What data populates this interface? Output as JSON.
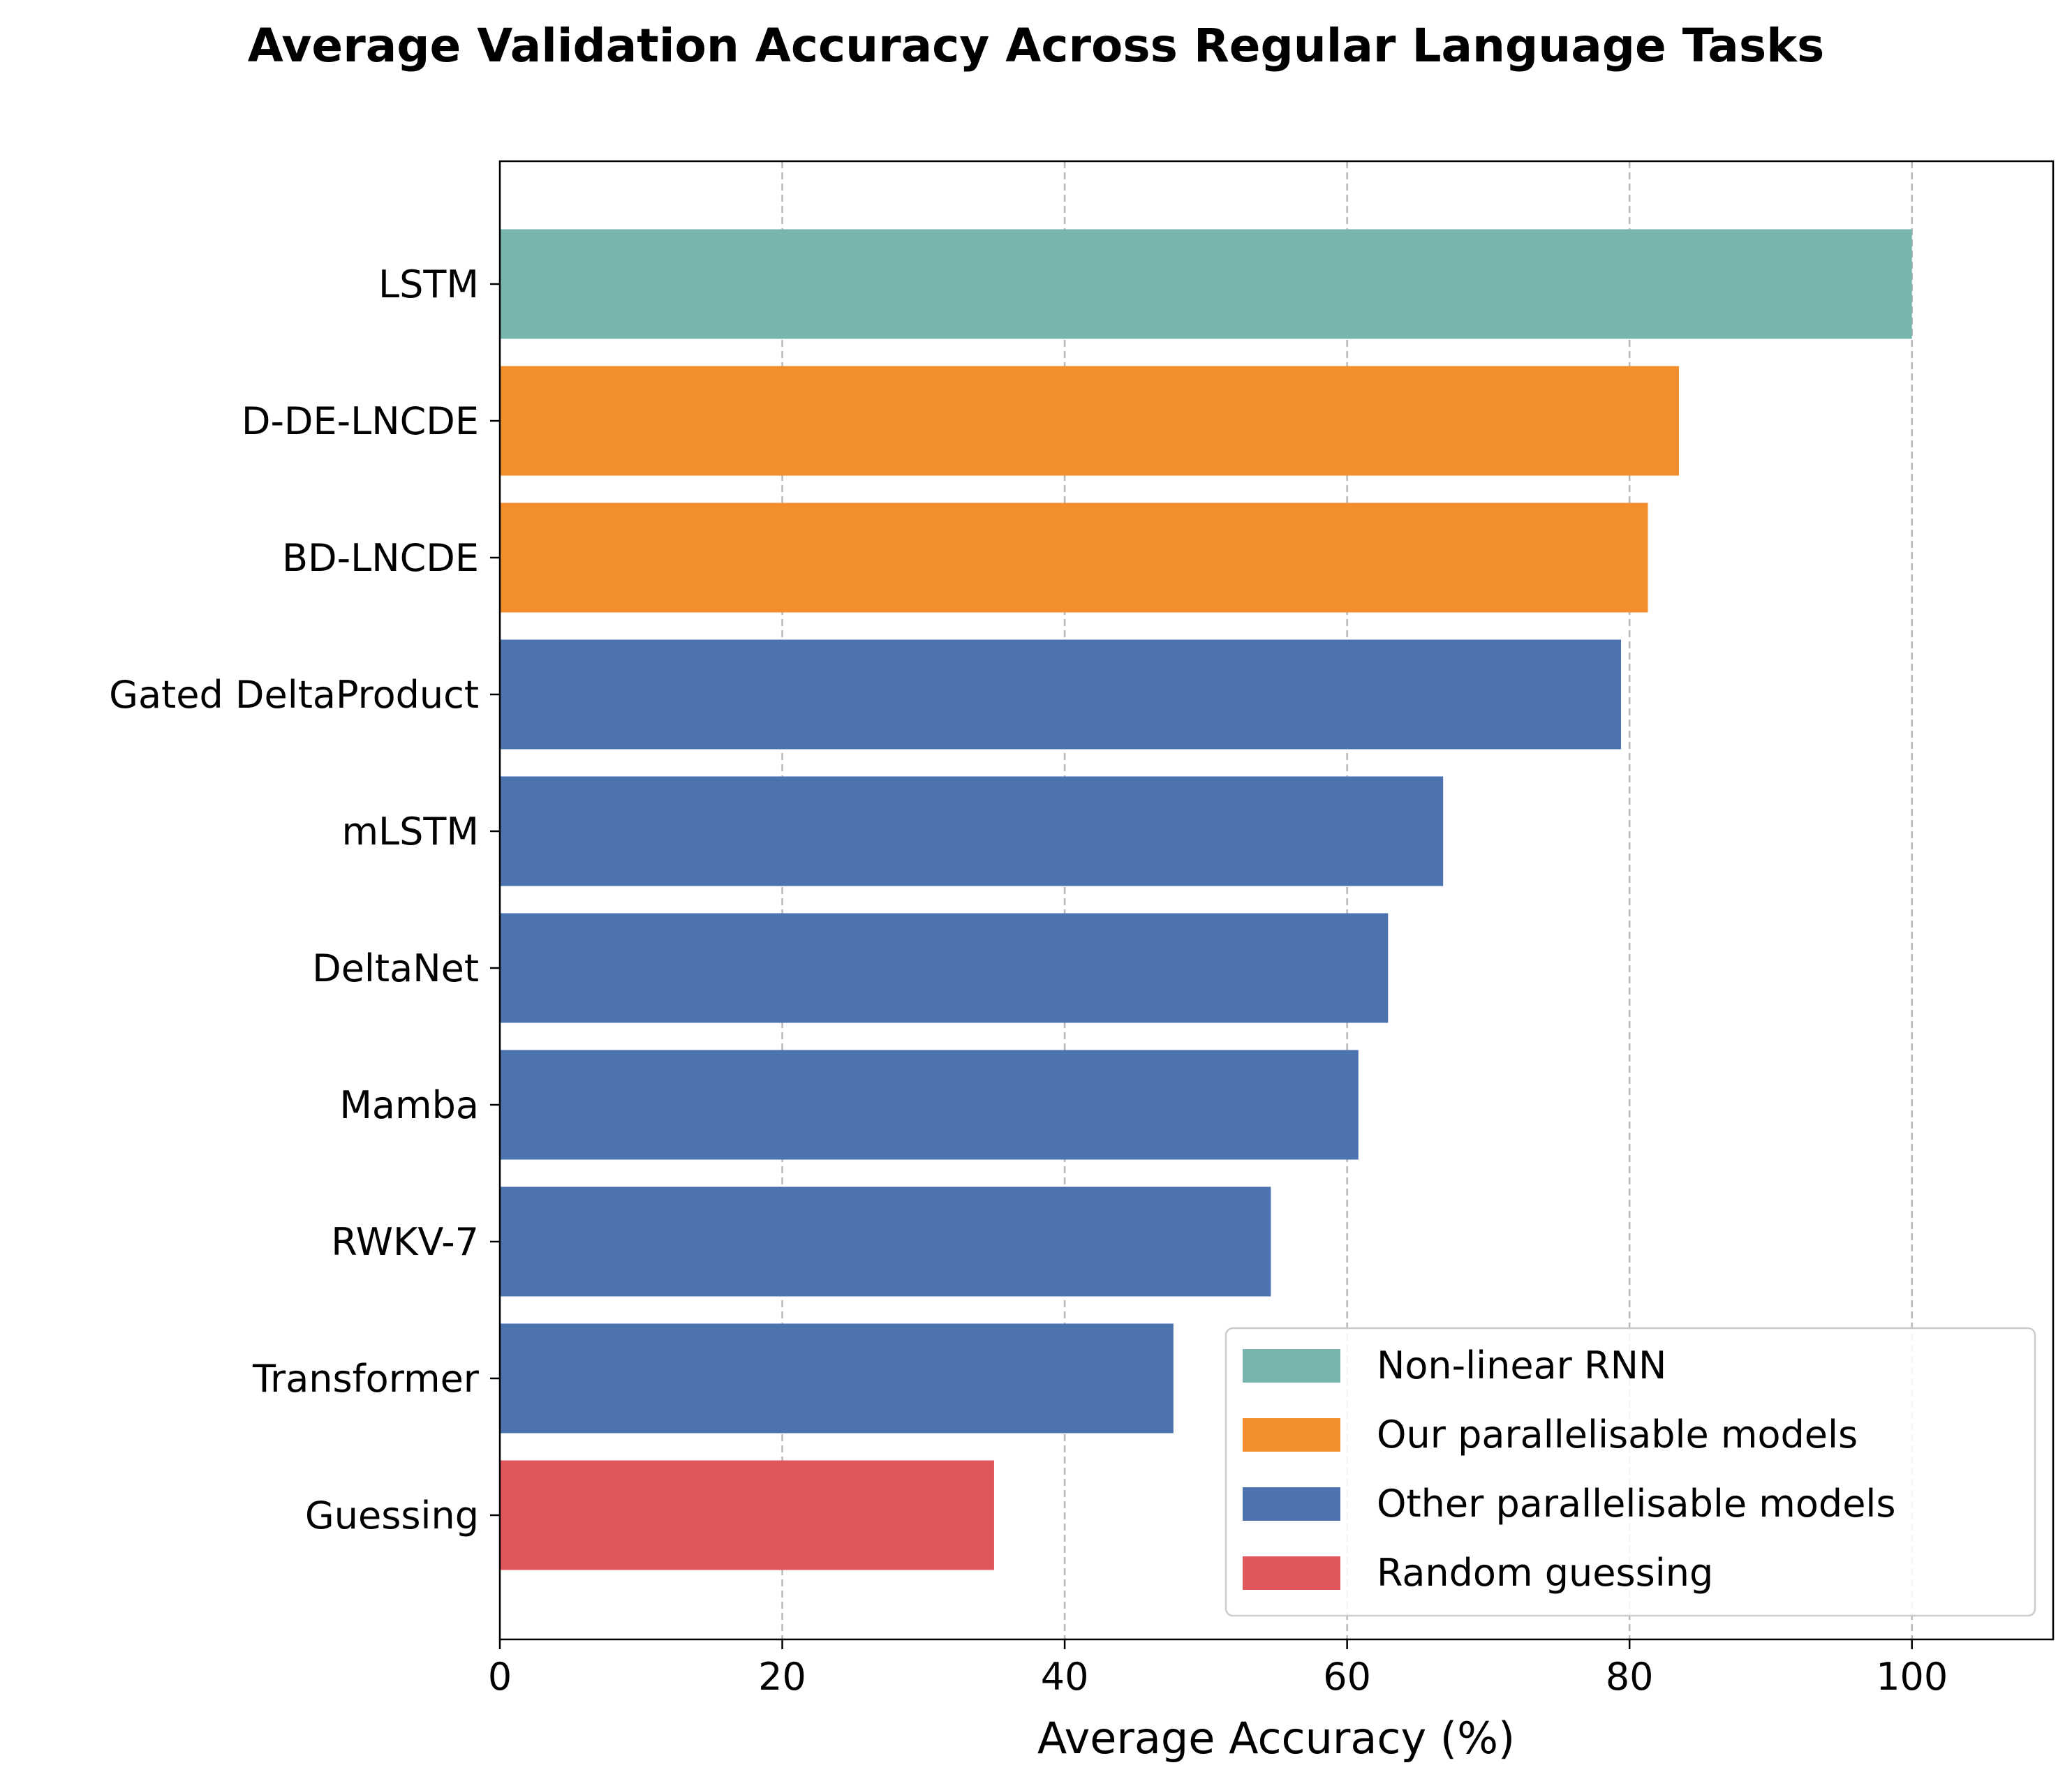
{
  "chart_data": {
    "type": "bar",
    "orientation": "horizontal",
    "title": "Average Validation Accuracy Across Regular Language Tasks",
    "xlabel": "Average Accuracy (%)",
    "ylabel": "",
    "xlim": [
      0,
      110
    ],
    "xticks": [
      0,
      20,
      40,
      60,
      80,
      100
    ],
    "xtick_labels": [
      "0",
      "20",
      "40",
      "60",
      "80",
      "100"
    ],
    "grid": "x-axis dashed",
    "legend_position": "bottom-right",
    "groups": [
      {
        "name": "Non-linear RNN",
        "color": "#78b5ae"
      },
      {
        "name": "Our parallelisable models",
        "color": "#f28e2c"
      },
      {
        "name": "Other parallelisable models",
        "color": "#4c72b0"
      },
      {
        "name": "Random guessing",
        "color": "#e0565b"
      }
    ],
    "categories": [
      "LSTM",
      "D-DE-LNCDE",
      "BD-LNCDE",
      "Gated DeltaProduct",
      "mLSTM",
      "DeltaNet",
      "Mamba",
      "RWKV-7",
      "Transformer",
      "Guessing"
    ],
    "values": [
      100.0,
      83.5,
      81.3,
      79.4,
      66.8,
      62.9,
      60.8,
      54.6,
      47.7,
      35.0
    ],
    "category_group": [
      0,
      1,
      1,
      2,
      2,
      2,
      2,
      2,
      2,
      3
    ]
  }
}
